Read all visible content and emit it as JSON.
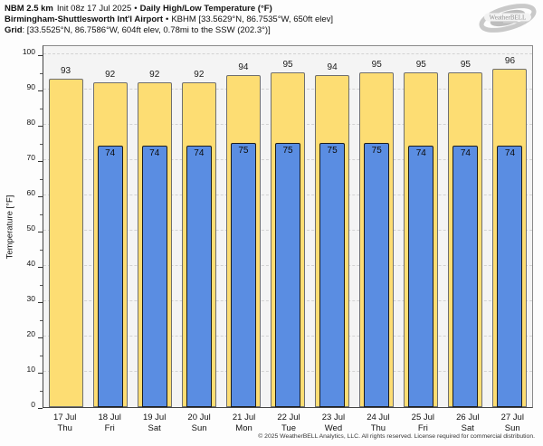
{
  "header": {
    "line1": {
      "model": "NBM 2.5 km",
      "init": "Init 08z 17 Jul 2025",
      "sep": "•",
      "product": "Daily High/Low Temperature (°F)"
    },
    "line2": {
      "station": "Birmingham-Shuttlesworth Int'l Airport",
      "sep": "•",
      "info": "KBHM [33.5629°N, 86.7535°W, 650ft elev]"
    },
    "line3": {
      "label": "Grid",
      "value": ": [33.5525°N, 86.7586°W, 604ft elev, 0.78mi to the SSW (202.3°)]"
    }
  },
  "logo": {
    "text": "WeatherBELL"
  },
  "chart_data": {
    "type": "bar",
    "title": "NBM 2.5 km Daily High/Low Temperature (°F) — Birmingham-Shuttlesworth Int'l Airport (KBHM)",
    "categories": [
      {
        "date": "17 Jul",
        "day": "Thu"
      },
      {
        "date": "18 Jul",
        "day": "Fri"
      },
      {
        "date": "19 Jul",
        "day": "Sat"
      },
      {
        "date": "20 Jul",
        "day": "Sun"
      },
      {
        "date": "21 Jul",
        "day": "Mon"
      },
      {
        "date": "22 Jul",
        "day": "Tue"
      },
      {
        "date": "23 Jul",
        "day": "Wed"
      },
      {
        "date": "24 Jul",
        "day": "Thu"
      },
      {
        "date": "25 Jul",
        "day": "Fri"
      },
      {
        "date": "26 Jul",
        "day": "Sat"
      },
      {
        "date": "27 Jul",
        "day": "Sun"
      }
    ],
    "series": [
      {
        "name": "Daily High",
        "color": "#FDDD73",
        "values": [
          93,
          92,
          92,
          92,
          94,
          95,
          94,
          95,
          95,
          95,
          96
        ]
      },
      {
        "name": "Daily Low",
        "color": "#5A8DE2",
        "values": [
          null,
          74,
          74,
          74,
          75,
          75,
          75,
          75,
          74,
          74,
          74
        ]
      }
    ],
    "ylabel": "Temperature [°F]",
    "ylim": [
      0,
      103
    ],
    "yticks": [
      0,
      10,
      20,
      30,
      40,
      50,
      60,
      70,
      80,
      90,
      100
    ],
    "minor_tick_step": 5,
    "grid": "horizontal dashed at major ticks",
    "legend": "none (values labeled on bars)"
  },
  "footer": {
    "copyright": "© 2025 WeatherBELL Analytics, LLC. All rights reserved. License required for commercial distribution."
  }
}
